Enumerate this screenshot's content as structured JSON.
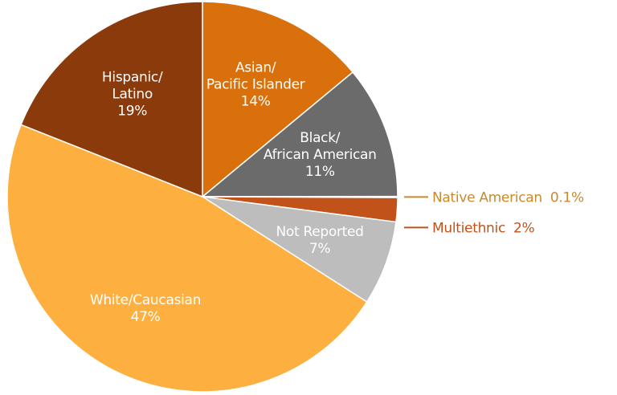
{
  "chart_data": {
    "type": "pie",
    "categories": [
      "Asian/\nPacific Islander",
      "Black/\nAfrican American",
      "Native American",
      "Multiethnic",
      "Not Reported",
      "White/Caucasian",
      "Hispanic/\nLatino"
    ],
    "values": [
      14,
      11,
      0.1,
      2,
      7,
      47,
      19
    ],
    "value_labels": [
      "14%",
      "11%",
      "0.1%",
      "2%",
      "7%",
      "47%",
      "19%"
    ],
    "colors": [
      "#d9700b",
      "#6b6b6b",
      "#c98a2e",
      "#c1531a",
      "#bdbdbd",
      "#fdb03f",
      "#8b3a0c"
    ]
  }
}
